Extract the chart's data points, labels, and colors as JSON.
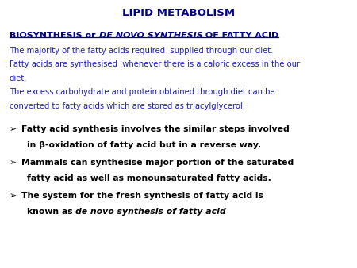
{
  "title": "LIPID METABOLISM",
  "title_color": "#00008B",
  "title_fontsize": 9.5,
  "background_color": "#FFFFFF",
  "heading_color": "#00008B",
  "heading_fontsize": 8.0,
  "body_color": "#1a1acd",
  "body_fontsize": 7.2,
  "bullet_color": "#000000",
  "bullet_fontsize": 7.8,
  "body_lines": [
    "The majority of the fatty acids required  supplied through our diet.",
    "Fatty acids are synthesised  whenever there is a caloric excess in the our",
    "diet.",
    "The excess carbohydrate and protein obtained through diet can be",
    "converted to fatty acids which are stored as triacylglycerol."
  ],
  "bullet1_line1": "Fatty acid synthesis involves the similar steps involved",
  "bullet1_line2": "in β-oxidation of fatty acid but in a reverse way.",
  "bullet2_line1": "Mammals can synthesise major portion of the saturated",
  "bullet2_line2": "fatty acid as well as monounsaturated fatty acids.",
  "bullet3_line1": "The system for the fresh synthesis of fatty acid is",
  "bullet3_line2_normal": "known as ",
  "bullet3_line2_italic": "de novo synthesis of fatty acid"
}
